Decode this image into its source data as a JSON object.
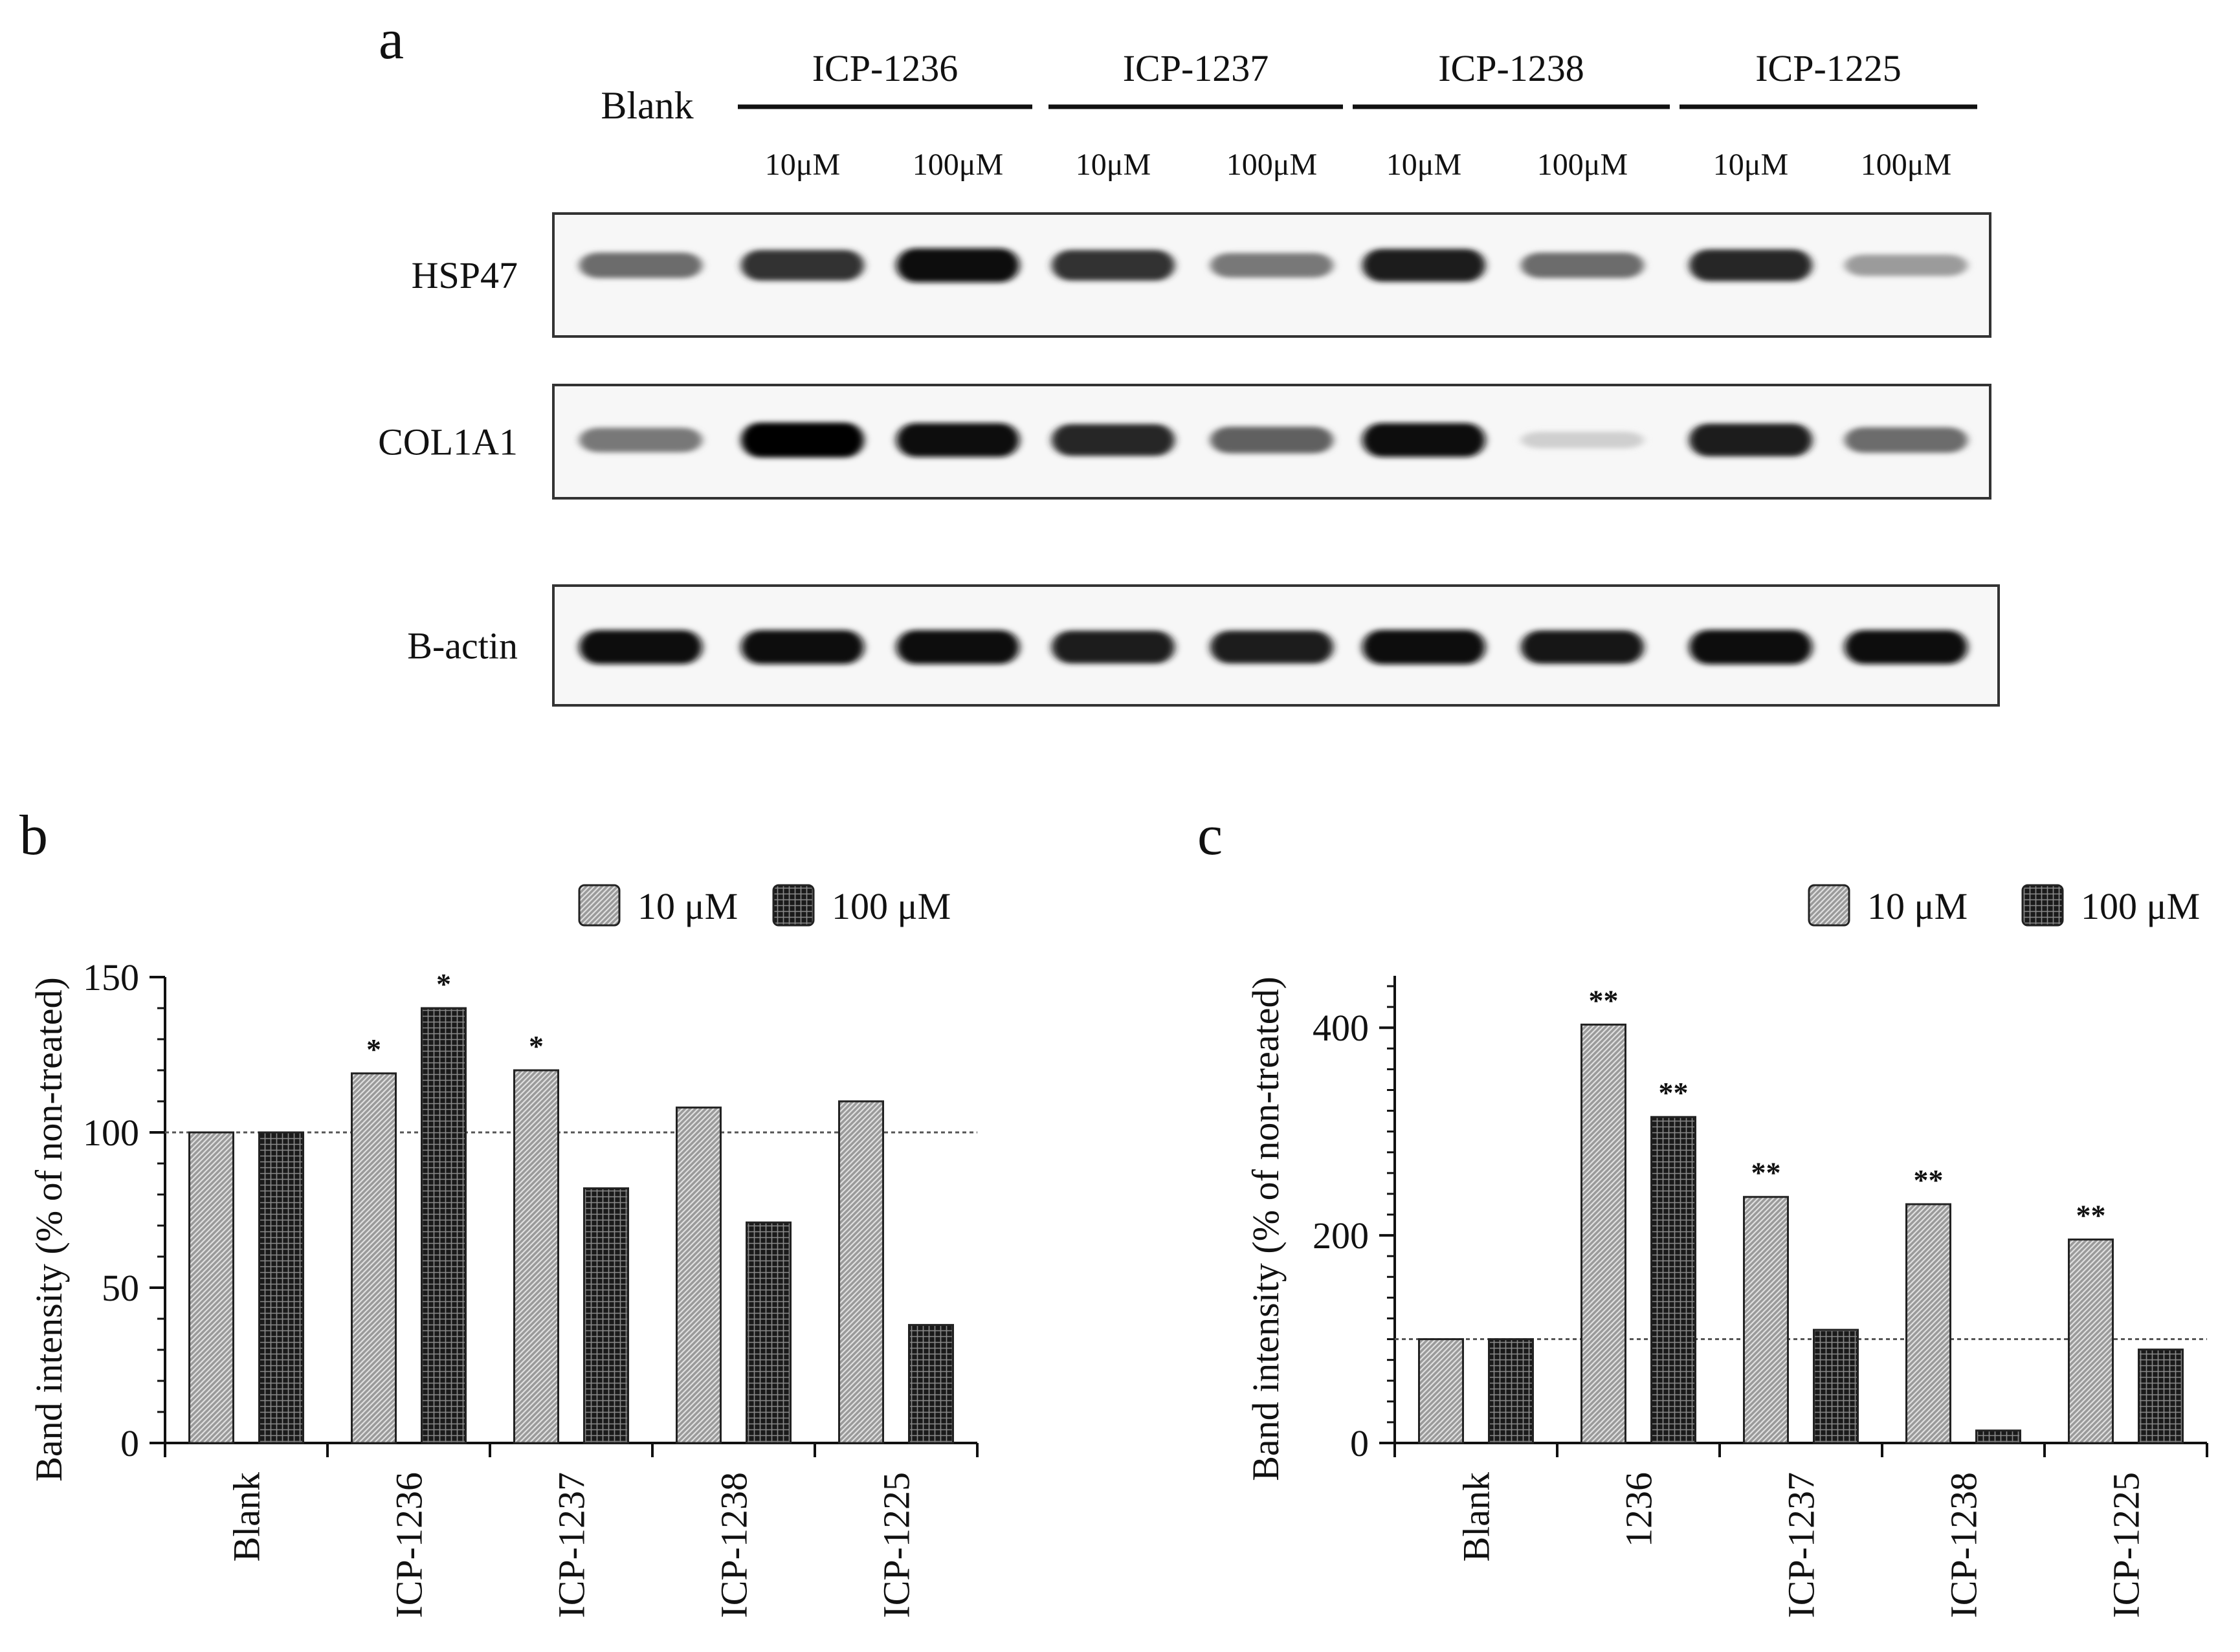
{
  "panel_labels": {
    "a": "a",
    "b": "b",
    "c": "c"
  },
  "blot": {
    "blank_label": "Blank",
    "groups": [
      "ICP-1236",
      "ICP-1237",
      "ICP-1238",
      "ICP-1225"
    ],
    "concentrations": [
      "10μM",
      "100μM"
    ],
    "rows": [
      {
        "name": "HSP47",
        "intensity": [
          0.55,
          0.8,
          0.95,
          0.8,
          0.5,
          0.9,
          0.55,
          0.85,
          0.35
        ]
      },
      {
        "name": "COL1A1",
        "intensity": [
          0.5,
          1.0,
          0.95,
          0.85,
          0.6,
          0.95,
          0.12,
          0.9,
          0.55
        ]
      },
      {
        "name": "B-actin",
        "intensity": [
          0.95,
          0.95,
          0.95,
          0.9,
          0.9,
          0.98,
          0.92,
          0.98,
          0.95
        ]
      }
    ]
  },
  "chart_data": [
    {
      "type": "bar",
      "panel": "b",
      "ylabel": "Band intensity (% of non-treated)",
      "ylim": [
        0,
        150
      ],
      "yticks": [
        0,
        50,
        100,
        150
      ],
      "reference_line": 100,
      "categories": [
        "Blank",
        "ICP-1236",
        "ICP-1237",
        "ICP-1238",
        "ICP-1225"
      ],
      "series": [
        {
          "name": "10 μM",
          "values": [
            100,
            119,
            120,
            108,
            110
          ],
          "annotations": [
            "",
            "*",
            "*",
            "",
            ""
          ]
        },
        {
          "name": "100 μM",
          "values": [
            100,
            140,
            82,
            71,
            38
          ],
          "annotations": [
            "",
            "*",
            "",
            "",
            ""
          ]
        }
      ],
      "legend": "top-right",
      "colors": {
        "10 μM": "#a9a9a9",
        "100 μM": "#3a3a3a"
      }
    },
    {
      "type": "bar",
      "panel": "c",
      "ylabel": "Band intensity (% of non-treated)",
      "ylim": [
        0,
        450
      ],
      "yticks": [
        0,
        200,
        400
      ],
      "reference_line": 100,
      "categories": [
        "Blank",
        "1236",
        "ICP-1237",
        "ICP-1238",
        "ICP-1225"
      ],
      "series": [
        {
          "name": "10 μM",
          "values": [
            100,
            403,
            237,
            230,
            196
          ],
          "annotations": [
            "",
            "**",
            "**",
            "**",
            "**"
          ]
        },
        {
          "name": "100 μM",
          "values": [
            100,
            314,
            109,
            12,
            90
          ],
          "annotations": [
            "",
            "**",
            "",
            "",
            ""
          ]
        }
      ],
      "legend": "top-right",
      "colors": {
        "10 μM": "#a9a9a9",
        "100 μM": "#3a3a3a"
      }
    }
  ]
}
